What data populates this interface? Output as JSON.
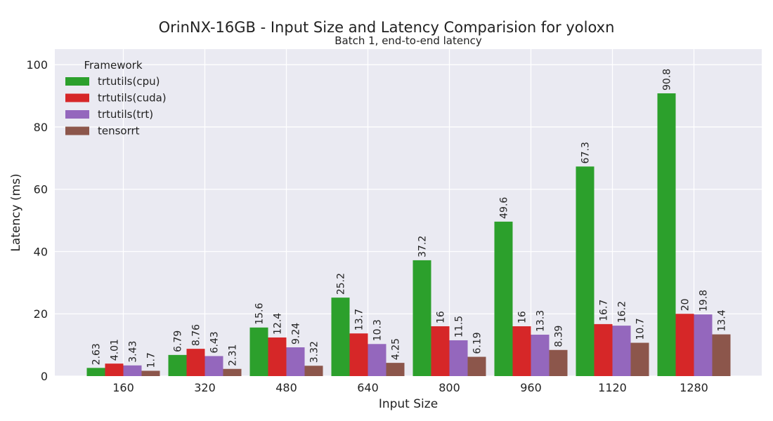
{
  "chart_data": {
    "type": "bar",
    "title": "OrinNX-16GB - Input Size and Latency Comparision for yoloxn",
    "subtitle": "Batch 1, end-to-end latency",
    "xlabel": "Input Size",
    "ylabel": "Latency (ms)",
    "categories": [
      "160",
      "320",
      "480",
      "640",
      "800",
      "960",
      "1120",
      "1280"
    ],
    "ylim": [
      0,
      105
    ],
    "yticks": [
      0,
      20,
      40,
      60,
      80,
      100
    ],
    "grid": true,
    "legend": {
      "title": "Framework",
      "placement": "top-left"
    },
    "series": [
      {
        "name": "trtutils(cpu)",
        "color": "#2ca02c",
        "values": [
          2.63,
          6.79,
          15.6,
          25.2,
          37.2,
          49.6,
          67.3,
          90.8
        ],
        "labels": [
          "2.63",
          "6.79",
          "15.6",
          "25.2",
          "37.2",
          "49.6",
          "67.3",
          "90.8"
        ]
      },
      {
        "name": "trtutils(cuda)",
        "color": "#d62728",
        "values": [
          4.01,
          8.76,
          12.4,
          13.7,
          16,
          16,
          16.7,
          20
        ],
        "labels": [
          "4.01",
          "8.76",
          "12.4",
          "13.7",
          "16",
          "16",
          "16.7",
          "20"
        ]
      },
      {
        "name": "trtutils(trt)",
        "color": "#9467bd",
        "values": [
          3.43,
          6.43,
          9.24,
          10.3,
          11.5,
          13.3,
          16.2,
          19.8
        ],
        "labels": [
          "3.43",
          "6.43",
          "9.24",
          "10.3",
          "11.5",
          "13.3",
          "16.2",
          "19.8"
        ]
      },
      {
        "name": "tensorrt",
        "color": "#8c564b",
        "values": [
          1.7,
          2.31,
          3.32,
          4.25,
          6.19,
          8.39,
          10.7,
          13.4
        ],
        "labels": [
          "1.7",
          "2.31",
          "3.32",
          "4.25",
          "6.19",
          "8.39",
          "10.7",
          "13.4"
        ]
      }
    ]
  }
}
